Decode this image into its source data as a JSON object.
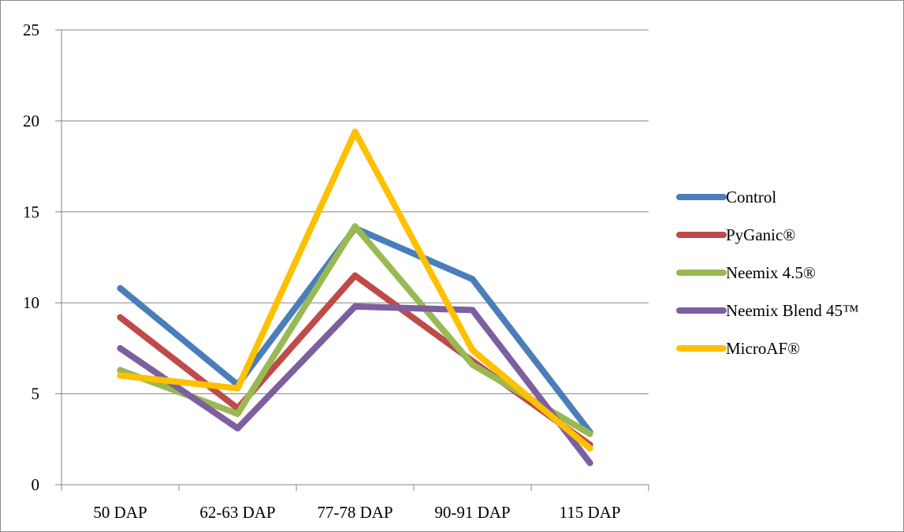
{
  "chart_data": {
    "type": "line",
    "title": "",
    "xlabel": "",
    "ylabel": "",
    "categories": [
      "50 DAP",
      "62-63 DAP",
      "77-78 DAP",
      "90-91 DAP",
      "115 DAP"
    ],
    "ylim": [
      0,
      25
    ],
    "yticks": [
      "0",
      "5",
      "10",
      "15",
      "20",
      "25"
    ],
    "grid": "horizontal",
    "legend_position": "right",
    "series": [
      {
        "name": "Control",
        "color": "#4a7ebb",
        "values": [
          10.8,
          5.5,
          14.1,
          11.3,
          2.9
        ]
      },
      {
        "name": "PyGanic®",
        "color": "#be4b48",
        "values": [
          9.2,
          4.2,
          11.5,
          6.8,
          2.2
        ]
      },
      {
        "name": "Neemix 4.5®",
        "color": "#98b954",
        "values": [
          6.3,
          3.9,
          14.2,
          6.6,
          2.8
        ]
      },
      {
        "name": "Neemix Blend 45™",
        "color": "#7d5fa0",
        "values": [
          7.5,
          3.1,
          9.8,
          9.6,
          1.2
        ]
      },
      {
        "name": "MicroAF®",
        "color": "#ffc000",
        "values": [
          6.0,
          5.3,
          19.4,
          7.4,
          2.0
        ]
      }
    ]
  }
}
